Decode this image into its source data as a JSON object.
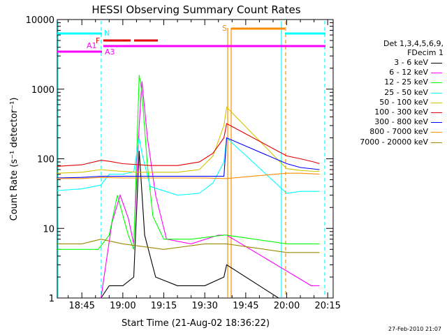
{
  "chart_data": {
    "type": "line",
    "title": "HESSI Observing Summary Count Rates",
    "xlabel": "Start Time (21-Aug-02 18:36:22)",
    "ylabel": "Count Rate (s⁻¹ detector⁻¹)",
    "y_scale": "log",
    "ylim": [
      1,
      10000
    ],
    "xlim": [
      "18:36",
      "20:17"
    ],
    "x_ticks": [
      "18:45",
      "19:00",
      "19:15",
      "19:30",
      "19:45",
      "20:00",
      "20:15"
    ],
    "y_ticks": [
      "1",
      "10",
      "100",
      "1000",
      "10000"
    ],
    "legend_title": [
      "Det 1,3,4,5,6,9,",
      "FDecim 1"
    ],
    "legend_placement": "right",
    "series": [
      {
        "name": "3 - 6 keV",
        "color": "#000000",
        "x": [
          "18:36",
          "18:44",
          "18:52",
          "18:55",
          "19:00",
          "19:04",
          "19:06",
          "19:08",
          "19:12",
          "19:20",
          "19:30",
          "19:37",
          "19:38",
          "19:57",
          "20:00",
          "20:05",
          "20:10",
          "20:12"
        ],
        "y": [
          1,
          1,
          1,
          1.5,
          1.5,
          2,
          130,
          8,
          2,
          1.5,
          1.5,
          2,
          3,
          1,
          1,
          1,
          1,
          1
        ]
      },
      {
        "name": "6 - 12 keV",
        "color": "#ff00ff",
        "x": [
          "18:52",
          "18:56",
          "18:59",
          "19:02",
          "19:04",
          "19:06",
          "19:07",
          "19:09",
          "19:12",
          "19:16",
          "19:25",
          "19:35",
          "19:38",
          "20:09",
          "20:12"
        ],
        "y": [
          1,
          12,
          30,
          14,
          6,
          300,
          1300,
          200,
          30,
          7,
          6,
          8,
          8,
          1.5,
          1.5
        ]
      },
      {
        "name": "12 - 25 keV",
        "color": "#00ff00",
        "x": [
          "18:36",
          "18:44",
          "18:51",
          "18:55",
          "18:58",
          "19:02",
          "19:04",
          "19:06",
          "19:07",
          "19:09",
          "19:11",
          "19:15",
          "19:25",
          "19:37",
          "19:38",
          "20:00",
          "20:05",
          "20:10",
          "20:12"
        ],
        "y": [
          5,
          5,
          5,
          8,
          30,
          8,
          5,
          1600,
          900,
          80,
          15,
          7,
          7,
          8,
          8,
          6,
          6,
          6,
          6
        ]
      },
      {
        "name": "25 - 50 keV",
        "color": "#00ffff",
        "x": [
          "18:36",
          "18:45",
          "18:52",
          "18:55",
          "19:00",
          "19:04",
          "19:06",
          "19:07",
          "19:10",
          "19:20",
          "19:28",
          "19:33",
          "19:37",
          "19:38",
          "20:00",
          "20:05",
          "20:10",
          "20:12"
        ],
        "y": [
          35,
          37,
          42,
          60,
          60,
          65,
          200,
          120,
          40,
          30,
          32,
          45,
          90,
          200,
          32,
          34,
          34,
          34
        ]
      },
      {
        "name": "50 - 100 keV",
        "color": "#d4c400",
        "x": [
          "18:36",
          "18:45",
          "18:52",
          "18:55",
          "19:00",
          "19:05",
          "19:10",
          "19:20",
          "19:28",
          "19:33",
          "19:37",
          "19:38",
          "20:00",
          "20:05",
          "20:10",
          "20:12"
        ],
        "y": [
          62,
          64,
          70,
          68,
          66,
          64,
          64,
          64,
          70,
          110,
          300,
          550,
          72,
          68,
          66,
          66
        ]
      },
      {
        "name": "100 - 300 keV",
        "color": "#e00000",
        "x": [
          "18:36",
          "18:45",
          "18:52",
          "18:55",
          "19:00",
          "19:10",
          "19:20",
          "19:28",
          "19:33",
          "19:37",
          "19:38",
          "20:00",
          "20:05",
          "20:10",
          "20:12"
        ],
        "y": [
          78,
          82,
          95,
          92,
          85,
          80,
          80,
          90,
          120,
          200,
          320,
          110,
          100,
          90,
          85
        ]
      },
      {
        "name": "300 - 800 keV",
        "color": "#0000ff",
        "x": [
          "18:36",
          "18:45",
          "18:52",
          "19:00",
          "19:15",
          "19:30",
          "19:37",
          "19:38",
          "20:00",
          "20:05",
          "20:12"
        ],
        "y": [
          53,
          54,
          56,
          56,
          56,
          56,
          56,
          200,
          85,
          75,
          70
        ]
      },
      {
        "name": "800 - 7000 keV",
        "color": "#ff8c00",
        "x": [
          "18:36",
          "18:45",
          "18:52",
          "19:00",
          "19:15",
          "19:30",
          "19:37",
          "19:38",
          "20:00",
          "20:05",
          "20:12"
        ],
        "y": [
          52,
          52,
          54,
          53,
          53,
          53,
          52,
          52,
          62,
          62,
          60
        ]
      },
      {
        "name": "7000 - 20000 keV",
        "color": "#9a8a00",
        "x": [
          "18:36",
          "18:45",
          "18:52",
          "19:00",
          "19:15",
          "19:30",
          "19:37",
          "19:38",
          "20:00",
          "20:05",
          "20:12"
        ],
        "y": [
          6,
          6,
          7,
          6,
          5,
          6,
          6,
          6,
          4.5,
          4.5,
          4.5
        ]
      }
    ],
    "annotations": [
      {
        "label": "N",
        "color": "#00ffff"
      },
      {
        "label": "F",
        "color": "#e00000"
      },
      {
        "label": "A1",
        "color": "#ff00ff"
      },
      {
        "label": "A3",
        "color": "#ff00ff"
      },
      {
        "label": "S",
        "color": "#ff8c00"
      }
    ],
    "timestamp": "27-Feb-2010 21:07"
  }
}
